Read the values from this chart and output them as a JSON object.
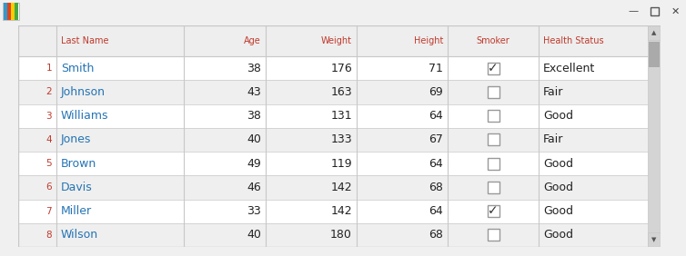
{
  "columns": [
    "",
    "Last Name",
    "Age",
    "Weight",
    "Height",
    "Smoker",
    "Health Status"
  ],
  "rows": [
    [
      1,
      "Smith",
      38,
      176,
      71,
      true,
      "Excellent"
    ],
    [
      2,
      "Johnson",
      43,
      163,
      69,
      false,
      "Fair"
    ],
    [
      3,
      "Williams",
      38,
      131,
      64,
      false,
      "Good"
    ],
    [
      4,
      "Jones",
      40,
      133,
      67,
      false,
      "Fair"
    ],
    [
      5,
      "Brown",
      49,
      119,
      64,
      false,
      "Good"
    ],
    [
      6,
      "Davis",
      46,
      142,
      68,
      false,
      "Good"
    ],
    [
      7,
      "Miller",
      33,
      142,
      64,
      true,
      "Good"
    ],
    [
      8,
      "Wilson",
      40,
      180,
      68,
      false,
      "Good"
    ]
  ],
  "col_aligns": [
    "right",
    "left",
    "right",
    "right",
    "right",
    "center",
    "left"
  ],
  "name_color": "#2474b5",
  "row_num_color": "#c0392b",
  "header_text_color": "#c0392b",
  "text_color": "#222222",
  "bg_header": "#eeeeee",
  "bg_odd": "#efefef",
  "bg_even": "#ffffff",
  "border_color": "#c8c8c8",
  "scrollbar_bg": "#d4d4d4",
  "scrollbar_thumb": "#aaaaaa",
  "fig_bg": "#f0f0f0",
  "window_bg": "#ffffff",
  "titlebar_bg": "#f0f0f0",
  "header_font_size": 7.0,
  "data_font_size": 9.0,
  "rownum_font_size": 7.5
}
